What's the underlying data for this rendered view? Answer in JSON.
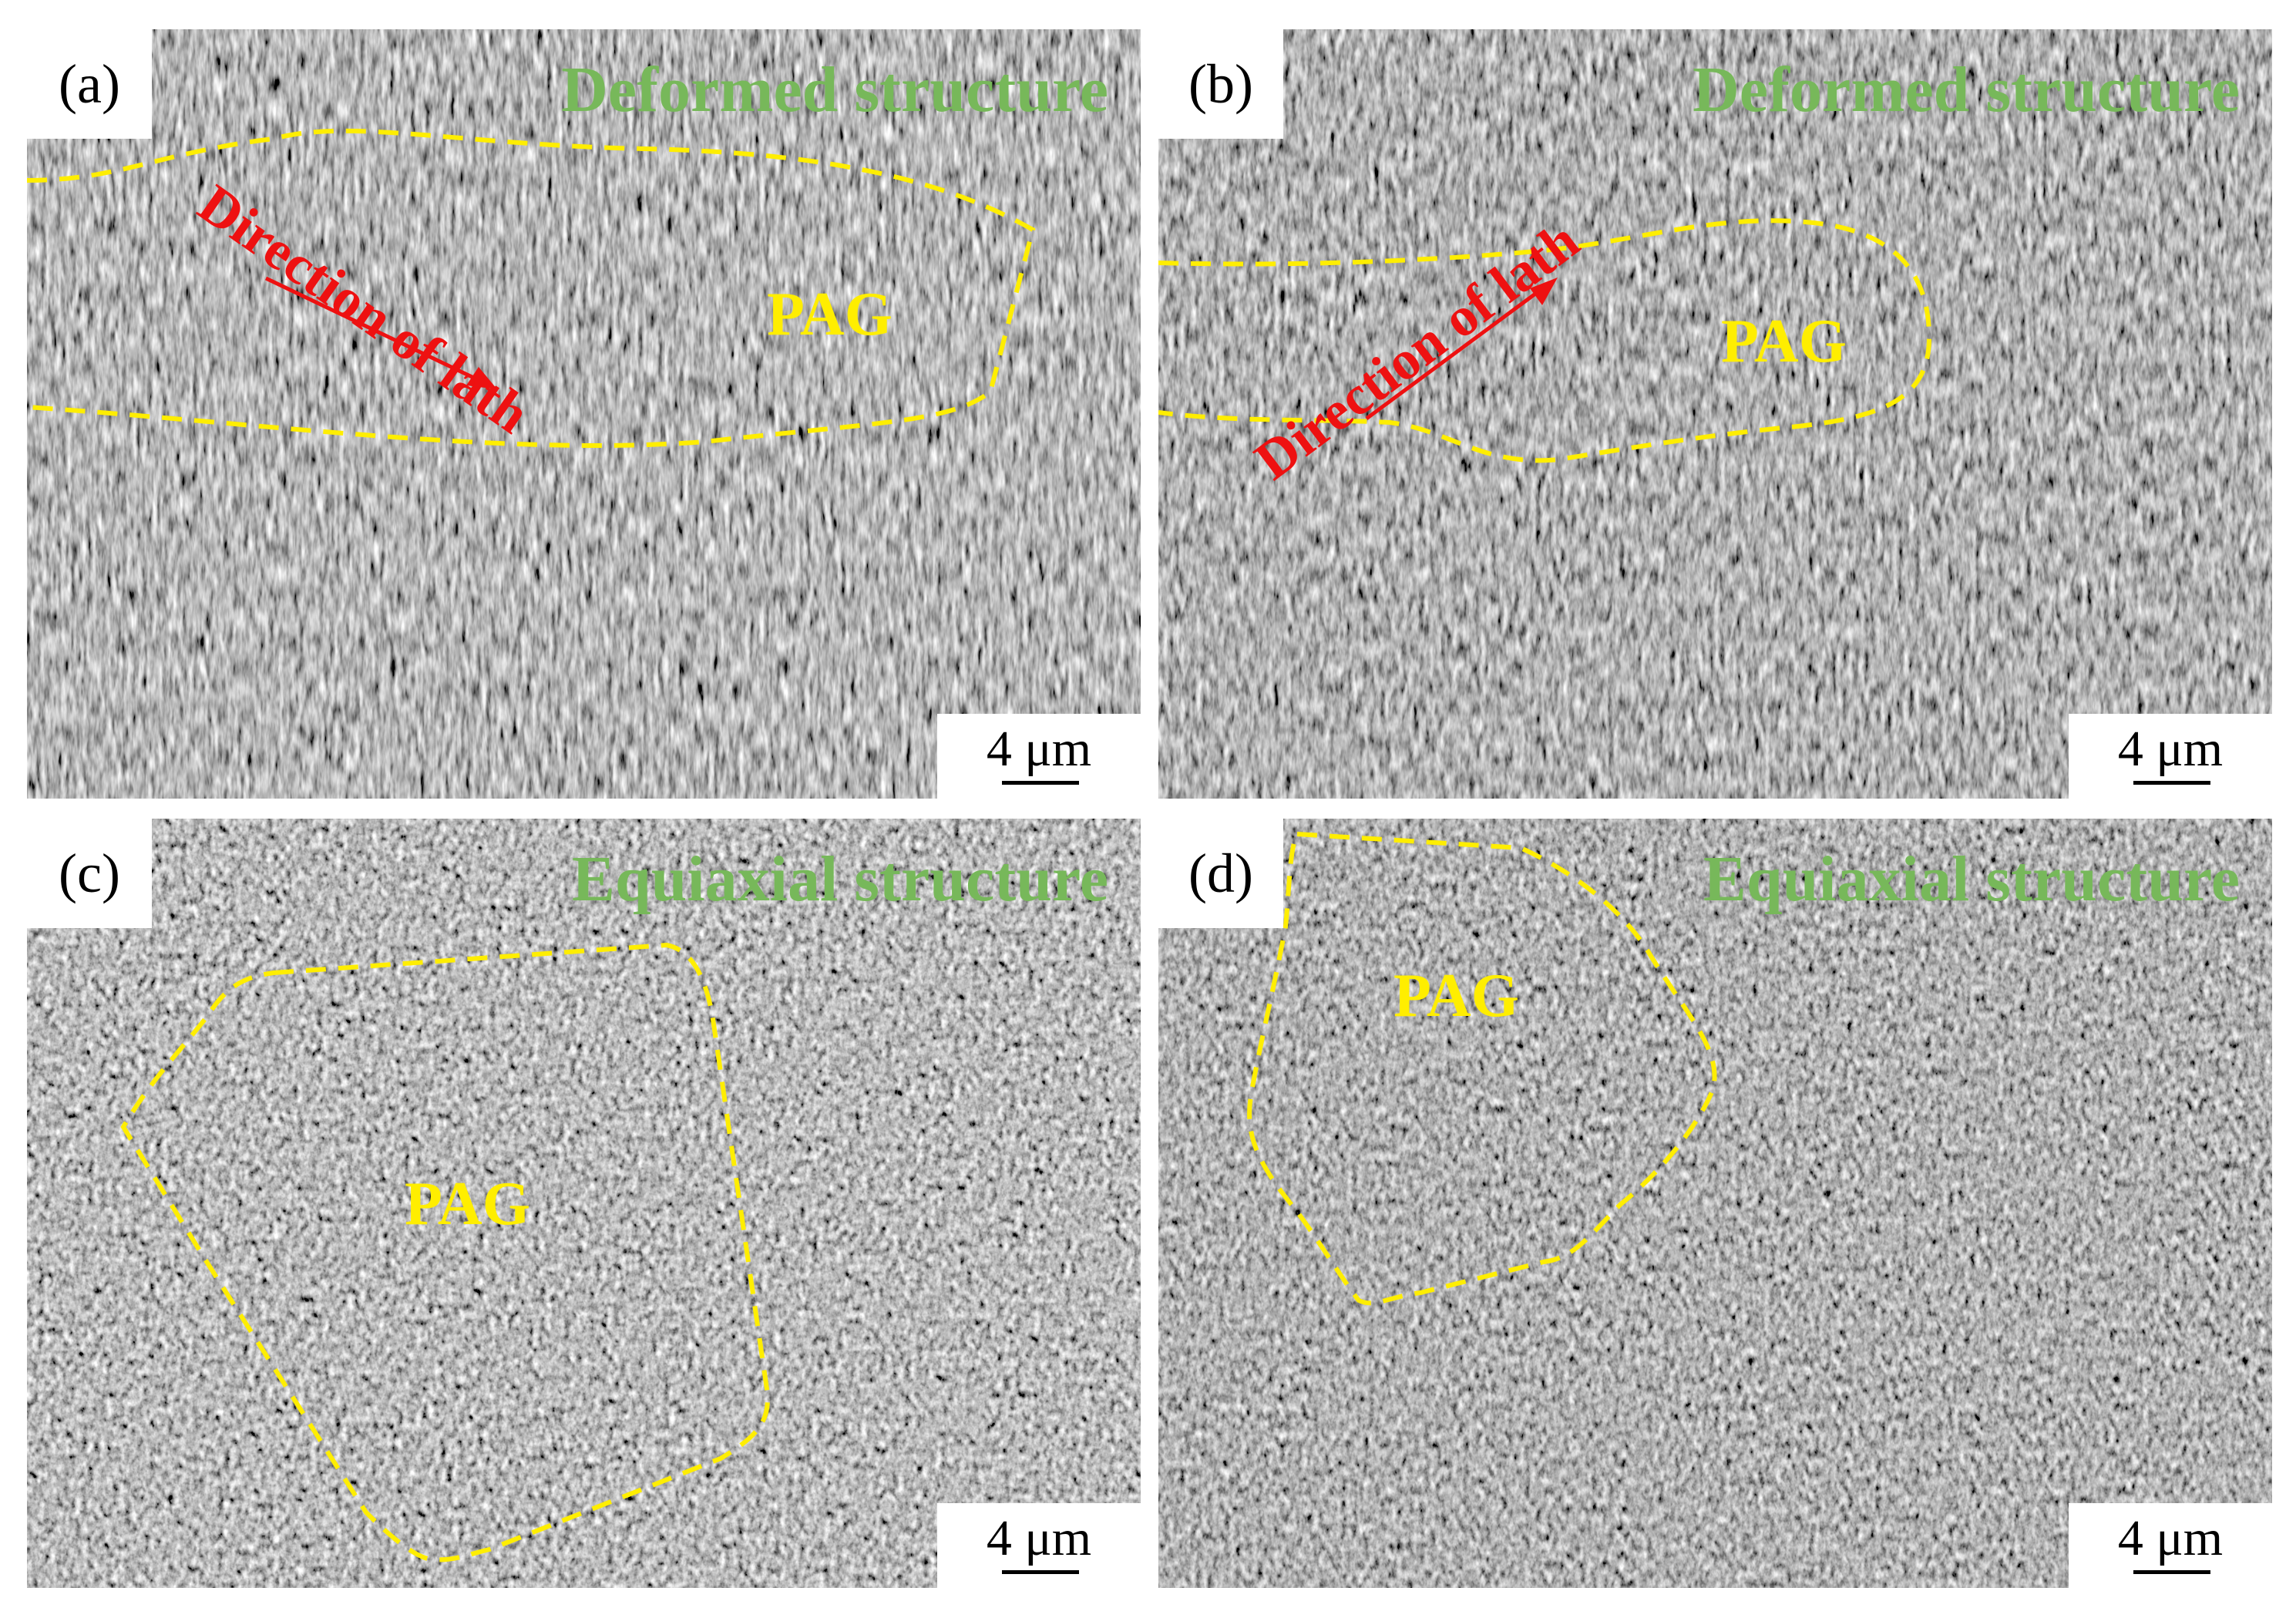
{
  "colors": {
    "title": "#77b85a",
    "pag": "#ffee00",
    "boundary": "#ffee00",
    "direction": "#ee1111",
    "sem_background": "#5a5a5a"
  },
  "panels": [
    {
      "label": "(a)",
      "title": "Deformed structure",
      "pag": "PAG",
      "direction": "Direction of lath",
      "scale": "4 μm"
    },
    {
      "label": "(b)",
      "title": "Deformed structure",
      "pag": "PAG",
      "direction": "Direction of lath",
      "scale": "4 μm"
    },
    {
      "label": "(c)",
      "title": "Equiaxial structure",
      "pag": "PAG",
      "scale": "4 μm"
    },
    {
      "label": "(d)",
      "title": "Equiaxial structure",
      "pag": "PAG",
      "scale": "4 μm"
    }
  ]
}
